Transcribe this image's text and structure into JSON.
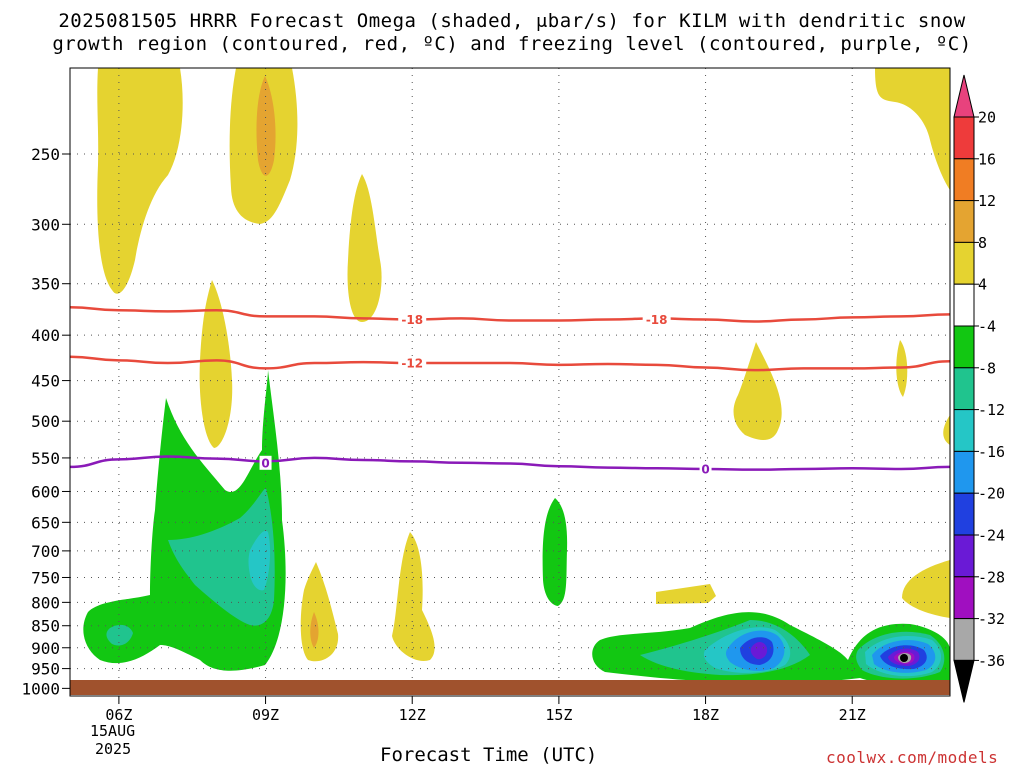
{
  "title_line1": "2025081505 HRRR Forecast Omega (shaded, μbar/s) for KILM with dendritic snow",
  "title_line2": "growth region (contoured, red, ºC) and freezing level (contoured, purple, ºC)",
  "xlabel": "Forecast Time (UTC)",
  "credit": "coolwx.com/models",
  "date_day": "15AUG",
  "date_year": "2025",
  "chart_data": {
    "type": "contour",
    "y_axis": {
      "ticks": [
        250,
        300,
        350,
        400,
        450,
        500,
        550,
        600,
        650,
        700,
        750,
        800,
        850,
        900,
        950,
        1000
      ],
      "range_hpa": [
        200,
        1020
      ]
    },
    "x_axis": {
      "ticks": [
        "06Z",
        "09Z",
        "12Z",
        "15Z",
        "18Z",
        "21Z"
      ],
      "range_hours": [
        5.0,
        23.0
      ]
    },
    "colorbar": {
      "labels": [
        "20",
        "16",
        "12",
        "8",
        "4",
        "-4",
        "-8",
        "-12",
        "-16",
        "-20",
        "-24",
        "-28",
        "-32",
        "-36"
      ],
      "colors": [
        "#e8427d",
        "#ee3b3b",
        "#f07d23",
        "#e4a431",
        "#e5d330",
        "#ffffff",
        "#12c712",
        "#20c48e",
        "#25c6c6",
        "#1f97ee",
        "#2040e0",
        "#6a1ad6",
        "#a00fc0",
        "#a8a8a8",
        "#000000"
      ]
    },
    "contours": [
      {
        "label": "-18",
        "color": "#e84a3c",
        "points": [
          [
            5.0,
            372
          ],
          [
            6.0,
            375
          ],
          [
            7.0,
            376
          ],
          [
            8.0,
            375
          ],
          [
            9.0,
            381
          ],
          [
            10.0,
            381
          ],
          [
            11.0,
            383
          ],
          [
            12.0,
            384
          ],
          [
            13.0,
            383
          ],
          [
            14.0,
            385
          ],
          [
            15.0,
            385
          ],
          [
            16.0,
            384
          ],
          [
            17.0,
            383
          ],
          [
            18.0,
            384
          ],
          [
            19.0,
            386
          ],
          [
            20.0,
            384
          ],
          [
            21.0,
            382
          ],
          [
            22.0,
            381
          ],
          [
            23.0,
            379
          ]
        ],
        "label_at": [
          [
            12.0,
            384
          ],
          [
            17.0,
            384
          ]
        ]
      },
      {
        "label": "-12",
        "color": "#e84a3c",
        "points": [
          [
            5.0,
            423
          ],
          [
            6.0,
            427
          ],
          [
            7.0,
            430
          ],
          [
            8.0,
            427
          ],
          [
            9.0,
            436
          ],
          [
            10.0,
            430
          ],
          [
            11.0,
            429
          ],
          [
            12.0,
            430
          ],
          [
            13.0,
            430
          ],
          [
            14.0,
            430
          ],
          [
            15.0,
            432
          ],
          [
            16.0,
            431
          ],
          [
            17.0,
            432
          ],
          [
            18.0,
            435
          ],
          [
            19.0,
            438
          ],
          [
            20.0,
            436
          ],
          [
            21.0,
            436
          ],
          [
            22.0,
            435
          ],
          [
            23.0,
            428
          ]
        ],
        "label_at": [
          [
            12.0,
            430
          ]
        ]
      },
      {
        "label": "0",
        "color": "#8a1ab8",
        "points": [
          [
            5.0,
            563
          ],
          [
            6.0,
            552
          ],
          [
            7.0,
            548
          ],
          [
            8.0,
            551
          ],
          [
            9.0,
            555
          ],
          [
            10.0,
            550
          ],
          [
            11.0,
            553
          ],
          [
            12.0,
            555
          ],
          [
            13.0,
            557
          ],
          [
            14.0,
            558
          ],
          [
            15.0,
            562
          ],
          [
            16.0,
            564
          ],
          [
            17.0,
            565
          ],
          [
            18.0,
            566
          ],
          [
            19.0,
            567
          ],
          [
            20.0,
            566
          ],
          [
            21.0,
            565
          ],
          [
            22.0,
            566
          ],
          [
            23.0,
            563
          ]
        ],
        "label_at": [
          [
            9.0,
            557
          ],
          [
            18.0,
            566
          ]
        ]
      }
    ]
  }
}
